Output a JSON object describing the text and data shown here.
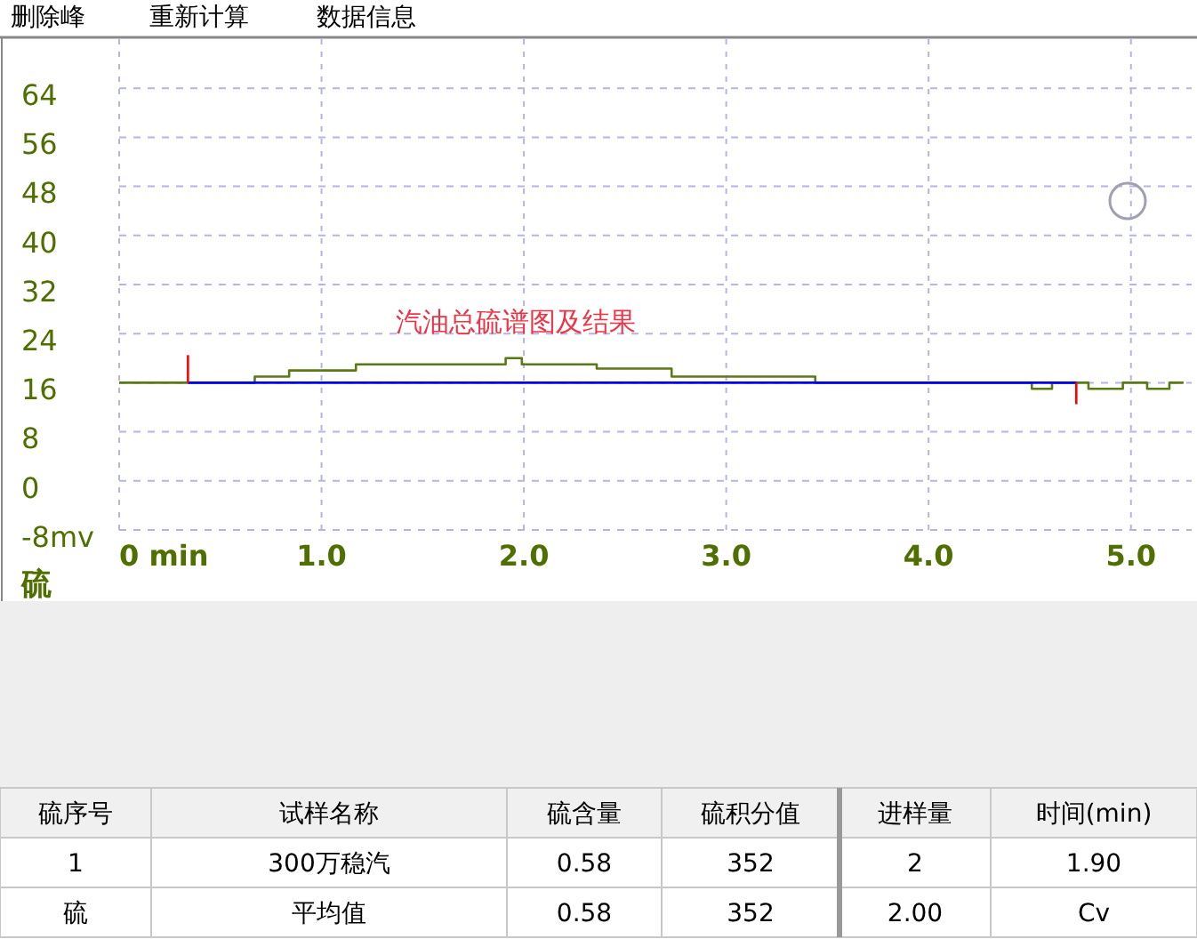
{
  "chart_data": {
    "type": "step",
    "title": "汽油总硫谱图及结果",
    "ylabel": "硫",
    "xlim": [
      0,
      5.3
    ],
    "ylim": [
      -8,
      72
    ],
    "xticks": [
      {
        "value": 0,
        "label": "0 min"
      },
      {
        "value": 1,
        "label": "1.0"
      },
      {
        "value": 2,
        "label": "2.0"
      },
      {
        "value": 3,
        "label": "3.0"
      },
      {
        "value": 4,
        "label": "4.0"
      },
      {
        "value": 5,
        "label": "5.0"
      }
    ],
    "yticks": [
      {
        "value": -8,
        "label": "-8mv"
      },
      0,
      8,
      16,
      24,
      32,
      40,
      48,
      56,
      64
    ],
    "grid": true,
    "series": [
      {
        "color": "#5a7a14",
        "x": [
          0,
          0.67,
          0.84,
          1.17,
          1.91,
          1.99,
          2.36,
          2.73,
          3.44,
          4.51,
          4.61,
          4.79,
          4.96,
          5.08,
          5.19,
          5.26
        ],
        "values": [
          16,
          17,
          18,
          19,
          20,
          19,
          18.3,
          17,
          16,
          15,
          16,
          15,
          16,
          15,
          16,
          16
        ]
      },
      {
        "type": "line",
        "color": "#0000ff",
        "x": [
          0.34,
          4.73
        ],
        "values": [
          16,
          16
        ]
      },
      {
        "type": "line",
        "color": "#ff0000",
        "x": [
          0.34,
          0.34
        ],
        "values": [
          16,
          20.5
        ]
      },
      {
        "type": "line",
        "color": "#ff0000",
        "x": [
          4.73,
          4.73
        ],
        "values": [
          16,
          12.5
        ]
      }
    ],
    "annotations": [
      "删除峰",
      "重新计算",
      "数据信息",
      "硫序号",
      "试样名称",
      "硫含量",
      "硫积分值",
      "进样量",
      "时间(min)",
      "1",
      "300万稳汽",
      "0.58",
      "352",
      "2",
      "1.90",
      "硫",
      "平均值",
      "0.58",
      "352",
      "2.00",
      "Cv"
    ]
  }
}
